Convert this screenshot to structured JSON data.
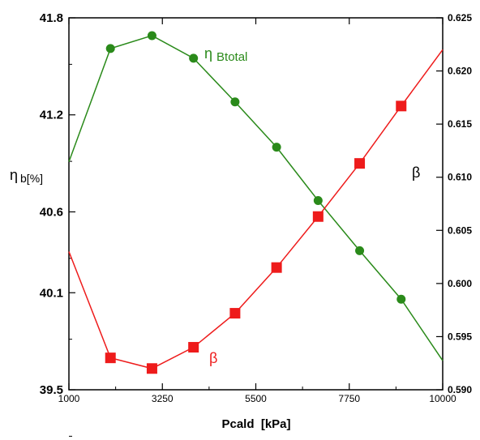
{
  "chart_data": {
    "type": "line",
    "xlabel": "Pcald  [kPa]",
    "x_ticks": [
      "1000",
      "3250",
      "5500",
      "7750",
      "10000"
    ],
    "xlim": [
      1000,
      10000
    ],
    "left_axis": {
      "label_main": "η",
      "label_sub": "b[%]",
      "ylim": [
        39.5,
        41.8
      ],
      "ticks": [
        "39.5",
        "40.1",
        "40.6",
        "41.2",
        "41.8"
      ]
    },
    "right_axis": {
      "label": "β",
      "ylim": [
        0.59,
        0.625
      ],
      "ticks": [
        "0.590",
        "0.595",
        "0.600",
        "0.605",
        "0.610",
        "0.615",
        "0.620",
        "0.625"
      ]
    },
    "series": [
      {
        "name": "η Btotal",
        "name_main": "η",
        "name_sub": "Btotal",
        "axis": "left",
        "color": "#2a8a1a",
        "marker": "circle",
        "x": [
          1000,
          2000,
          3000,
          4000,
          5000,
          6000,
          7000,
          8000,
          9000,
          10000
        ],
        "y": [
          40.91,
          41.61,
          41.69,
          41.55,
          41.28,
          41.0,
          40.67,
          40.36,
          40.06,
          39.68
        ]
      },
      {
        "name": "β",
        "axis": "right",
        "color": "#ee1b1b",
        "marker": "square",
        "x": [
          1000,
          2000,
          3000,
          4000,
          5000,
          6000,
          7000,
          8000,
          9000,
          10000
        ],
        "y": [
          0.603,
          0.593,
          0.592,
          0.594,
          0.5972,
          0.6015,
          0.6063,
          0.6113,
          0.6167,
          0.622
        ]
      }
    ]
  }
}
